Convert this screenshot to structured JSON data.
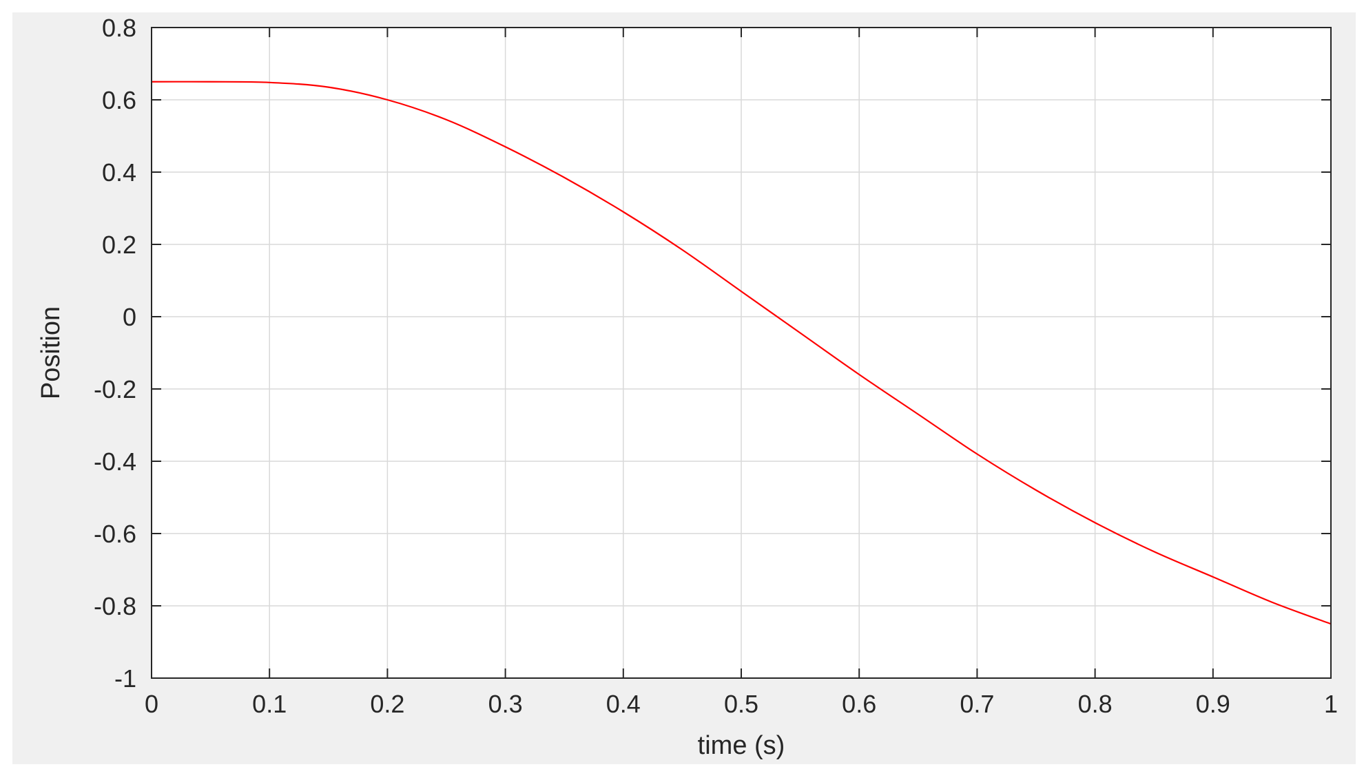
{
  "chart_data": {
    "type": "line",
    "title": "",
    "xlabel": "time (s)",
    "ylabel": "Position",
    "xlim": [
      0,
      1
    ],
    "ylim": [
      -1,
      0.8
    ],
    "x_ticks": [
      0,
      0.1,
      0.2,
      0.3,
      0.4,
      0.5,
      0.6,
      0.7,
      0.8,
      0.9,
      1
    ],
    "x_tick_labels": [
      "0",
      "0.1",
      "0.2",
      "0.3",
      "0.4",
      "0.5",
      "0.6",
      "0.7",
      "0.8",
      "0.9",
      "1"
    ],
    "y_ticks": [
      0.8,
      0.6,
      0.4,
      0.2,
      0,
      -0.2,
      -0.4,
      -0.6,
      -0.8,
      -1
    ],
    "y_tick_labels": [
      "0.8",
      "0.6",
      "0.4",
      "0.2",
      "0",
      "-0.2",
      "-0.4",
      "-0.6",
      "-0.8",
      "-1"
    ],
    "grid": true,
    "legend": "none",
    "colors": {
      "line": "#ff0000",
      "grid": "#d9d9d9",
      "axes": "#262626",
      "figure_bg": "#f0f0f0",
      "plot_bg": "#ffffff"
    },
    "series": [
      {
        "x": [
          0,
          0.05,
          0.1,
          0.15,
          0.2,
          0.25,
          0.3,
          0.35,
          0.4,
          0.45,
          0.5,
          0.55,
          0.6,
          0.65,
          0.7,
          0.75,
          0.8,
          0.85,
          0.9,
          0.95,
          1
        ],
        "y": [
          0.65,
          0.65,
          0.648,
          0.635,
          0.6,
          0.545,
          0.47,
          0.385,
          0.29,
          0.185,
          0.07,
          -0.045,
          -0.16,
          -0.27,
          -0.38,
          -0.48,
          -0.57,
          -0.65,
          -0.72,
          -0.79,
          -0.85
        ]
      }
    ]
  }
}
